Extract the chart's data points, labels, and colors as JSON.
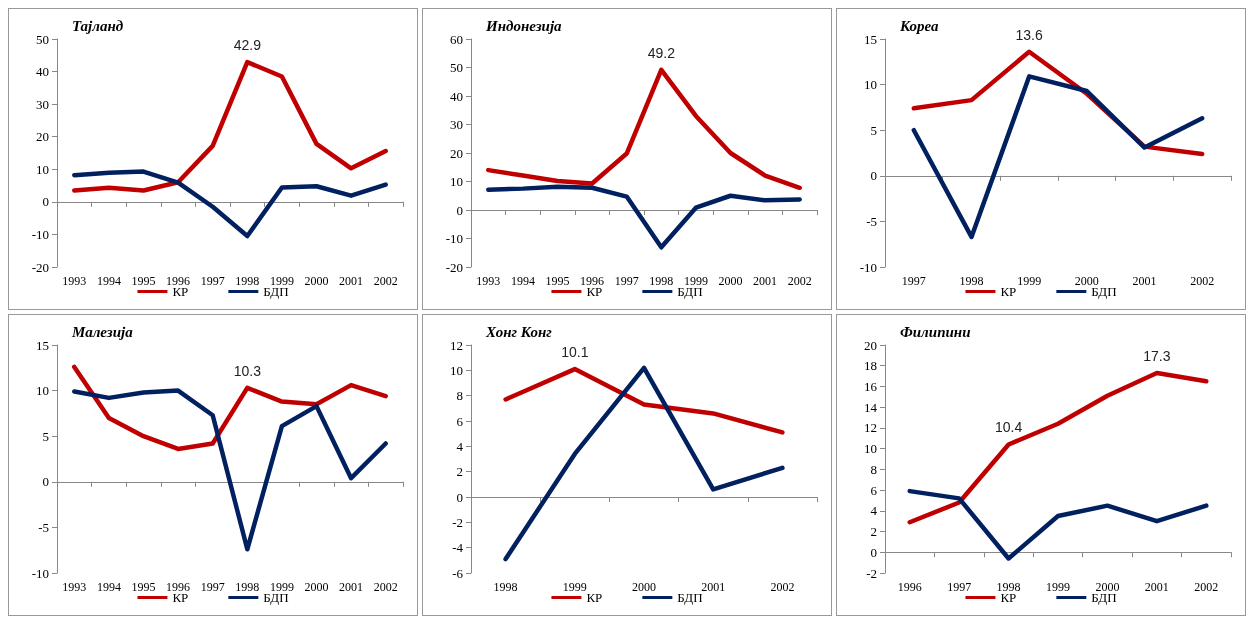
{
  "chart_data": [
    {
      "type": "line",
      "title": "Тајланд",
      "categories": [
        "1993",
        "1994",
        "1995",
        "1996",
        "1997",
        "1998",
        "1999",
        "2000",
        "2001",
        "2002"
      ],
      "ylim": [
        -20,
        50
      ],
      "yticks": [
        -20,
        -10,
        0,
        10,
        20,
        30,
        40,
        50
      ],
      "legend": "bottom",
      "annotations": [
        {
          "text": "42.9",
          "x": "1998",
          "y": 42.9
        }
      ],
      "series": [
        {
          "name": "КР",
          "color": "#c00000",
          "values": [
            3.5,
            4.3,
            3.5,
            6,
            17.2,
            42.9,
            38.5,
            17.8,
            10.3,
            15.6
          ]
        },
        {
          "name": "БДП",
          "color": "#002060",
          "values": [
            8.2,
            8.9,
            9.3,
            5.9,
            -1.5,
            -10.5,
            4.4,
            4.8,
            1.9,
            5.3
          ]
        }
      ]
    },
    {
      "type": "line",
      "title": "Индонезија",
      "categories": [
        "1993",
        "1994",
        "1995",
        "1996",
        "1997",
        "1998",
        "1999",
        "2000",
        "2001",
        "2002"
      ],
      "ylim": [
        -20,
        60
      ],
      "yticks": [
        -20,
        -10,
        0,
        10,
        20,
        30,
        40,
        50,
        60
      ],
      "legend": "bottom",
      "annotations": [
        {
          "text": "49.2",
          "x": "1998",
          "y": 49.2
        }
      ],
      "series": [
        {
          "name": "КР",
          "color": "#c00000",
          "values": [
            14,
            12.1,
            10.2,
            9.3,
            19.8,
            49.2,
            33,
            20,
            12.1,
            7.8
          ]
        },
        {
          "name": "БДП",
          "color": "#002060",
          "values": [
            7.1,
            7.5,
            8.2,
            7.8,
            4.7,
            -13.1,
            0.8,
            5,
            3.4,
            3.7
          ]
        }
      ]
    },
    {
      "type": "line",
      "title": "Кореа",
      "categories": [
        "1997",
        "1998",
        "1999",
        "2000",
        "2001",
        "2002"
      ],
      "ylim": [
        -10,
        15
      ],
      "yticks": [
        -10,
        -5,
        0,
        5,
        10,
        15
      ],
      "legend": "bottom",
      "annotations": [
        {
          "text": "13.6",
          "x": "1999",
          "y": 13.6
        }
      ],
      "series": [
        {
          "name": "КР",
          "color": "#c00000",
          "values": [
            7.4,
            8.3,
            13.6,
            9,
            3.2,
            2.4
          ]
        },
        {
          "name": "БДП",
          "color": "#002060",
          "values": [
            5,
            -6.7,
            10.9,
            9.3,
            3.1,
            6.3
          ]
        }
      ]
    },
    {
      "type": "line",
      "title": "Малезија",
      "categories": [
        "1993",
        "1994",
        "1995",
        "1996",
        "1997",
        "1998",
        "1999",
        "2000",
        "2001",
        "2002"
      ],
      "ylim": [
        -10,
        15
      ],
      "yticks": [
        -10,
        -5,
        0,
        5,
        10,
        15
      ],
      "legend": "bottom",
      "annotations": [
        {
          "text": "10.3",
          "x": "1998",
          "y": 10.3
        }
      ],
      "series": [
        {
          "name": "КР",
          "color": "#c00000",
          "values": [
            12.6,
            7,
            5,
            3.6,
            4.2,
            10.3,
            8.8,
            8.5,
            10.6,
            9.4
          ]
        },
        {
          "name": "БДП",
          "color": "#002060",
          "values": [
            9.9,
            9.2,
            9.8,
            10,
            7.3,
            -7.4,
            6.1,
            8.3,
            0.4,
            4.2
          ]
        }
      ]
    },
    {
      "type": "line",
      "title": "Хонг Конг",
      "categories": [
        "1998",
        "1999",
        "2000",
        "2001",
        "2002"
      ],
      "ylim": [
        -6,
        12
      ],
      "yticks": [
        -6,
        -4,
        -2,
        0,
        2,
        4,
        6,
        8,
        10,
        12
      ],
      "legend": "bottom",
      "annotations": [
        {
          "text": "10.1",
          "x": "1999",
          "y": 10.1
        }
      ],
      "series": [
        {
          "name": "КР",
          "color": "#c00000",
          "values": [
            7.7,
            10.1,
            7.3,
            6.6,
            5.1
          ]
        },
        {
          "name": "БДП",
          "color": "#002060",
          "values": [
            -4.9,
            3.4,
            10.2,
            0.6,
            2.3
          ]
        }
      ]
    },
    {
      "type": "line",
      "title": "Филипини",
      "categories": [
        "1996",
        "1997",
        "1998",
        "1999",
        "2000",
        "2001",
        "2002"
      ],
      "ylim": [
        -2,
        20
      ],
      "yticks": [
        -2,
        0,
        2,
        4,
        6,
        8,
        10,
        12,
        14,
        16,
        18,
        20
      ],
      "legend": "bottom",
      "annotations": [
        {
          "text": "10.4",
          "x": "1998",
          "y": 10.4
        },
        {
          "text": "17.3",
          "x": "2001",
          "y": 17.3
        }
      ],
      "series": [
        {
          "name": "КР",
          "color": "#c00000",
          "values": [
            2.9,
            4.8,
            10.4,
            12.4,
            15.1,
            17.3,
            16.5
          ]
        },
        {
          "name": "БДП",
          "color": "#002060",
          "values": [
            5.9,
            5.2,
            -0.6,
            3.5,
            4.5,
            3,
            4.5
          ]
        }
      ]
    }
  ]
}
